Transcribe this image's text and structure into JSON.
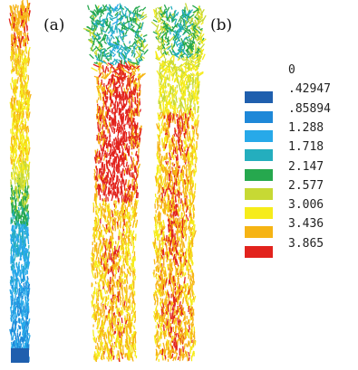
{
  "panels": {
    "a": {
      "label": "(a)"
    },
    "b": {
      "label": "(b)"
    }
  },
  "legend": {
    "entries": [
      {
        "value": "0",
        "color": ""
      },
      {
        "value": ".42947",
        "color": "#1f5fae"
      },
      {
        "value": ".85894",
        "color": "#1e88d8"
      },
      {
        "value": "1.288",
        "color": "#27a9e9"
      },
      {
        "value": "1.718",
        "color": "#24aebe"
      },
      {
        "value": "2.147",
        "color": "#26a84e"
      },
      {
        "value": "2.577",
        "color": "#c7d934"
      },
      {
        "value": "3.006",
        "color": "#f6ec1b"
      },
      {
        "value": "3.436",
        "color": "#f6b414"
      },
      {
        "value": "3.865",
        "color": "#e2231d"
      }
    ]
  }
}
